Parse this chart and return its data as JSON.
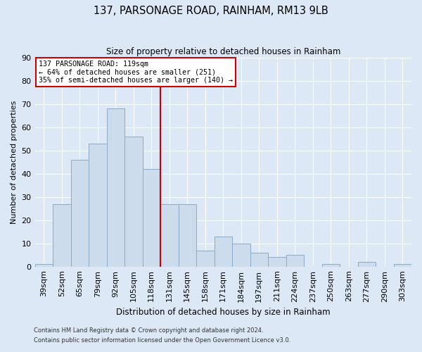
{
  "title": "137, PARSONAGE ROAD, RAINHAM, RM13 9LB",
  "subtitle": "Size of property relative to detached houses in Rainham",
  "xlabel": "Distribution of detached houses by size in Rainham",
  "ylabel": "Number of detached properties",
  "footer_line1": "Contains HM Land Registry data © Crown copyright and database right 2024.",
  "footer_line2": "Contains public sector information licensed under the Open Government Licence v3.0.",
  "bar_labels": [
    "39sqm",
    "52sqm",
    "65sqm",
    "79sqm",
    "92sqm",
    "105sqm",
    "118sqm",
    "131sqm",
    "145sqm",
    "158sqm",
    "171sqm",
    "184sqm",
    "197sqm",
    "211sqm",
    "224sqm",
    "237sqm",
    "250sqm",
    "263sqm",
    "277sqm",
    "290sqm",
    "303sqm"
  ],
  "bar_values": [
    1,
    27,
    46,
    53,
    68,
    56,
    42,
    27,
    27,
    7,
    13,
    10,
    6,
    4,
    5,
    0,
    1,
    0,
    2,
    0,
    1
  ],
  "bar_color": "#ccdcec",
  "bar_edge_color": "#8aaac8",
  "vline_x_index": 6,
  "vline_color": "#cc0000",
  "annotation_line1": "137 PARSONAGE ROAD: 119sqm",
  "annotation_line2": "← 64% of detached houses are smaller (251)",
  "annotation_line3": "35% of semi-detached houses are larger (140) →",
  "annotation_box_color": "#ffffff",
  "annotation_box_edge_color": "#cc0000",
  "ylim": [
    0,
    90
  ],
  "yticks": [
    0,
    10,
    20,
    30,
    40,
    50,
    60,
    70,
    80,
    90
  ],
  "bg_color": "#dce8f5",
  "plot_bg_color": "#dce8f5",
  "grid_color": "#ffffff"
}
